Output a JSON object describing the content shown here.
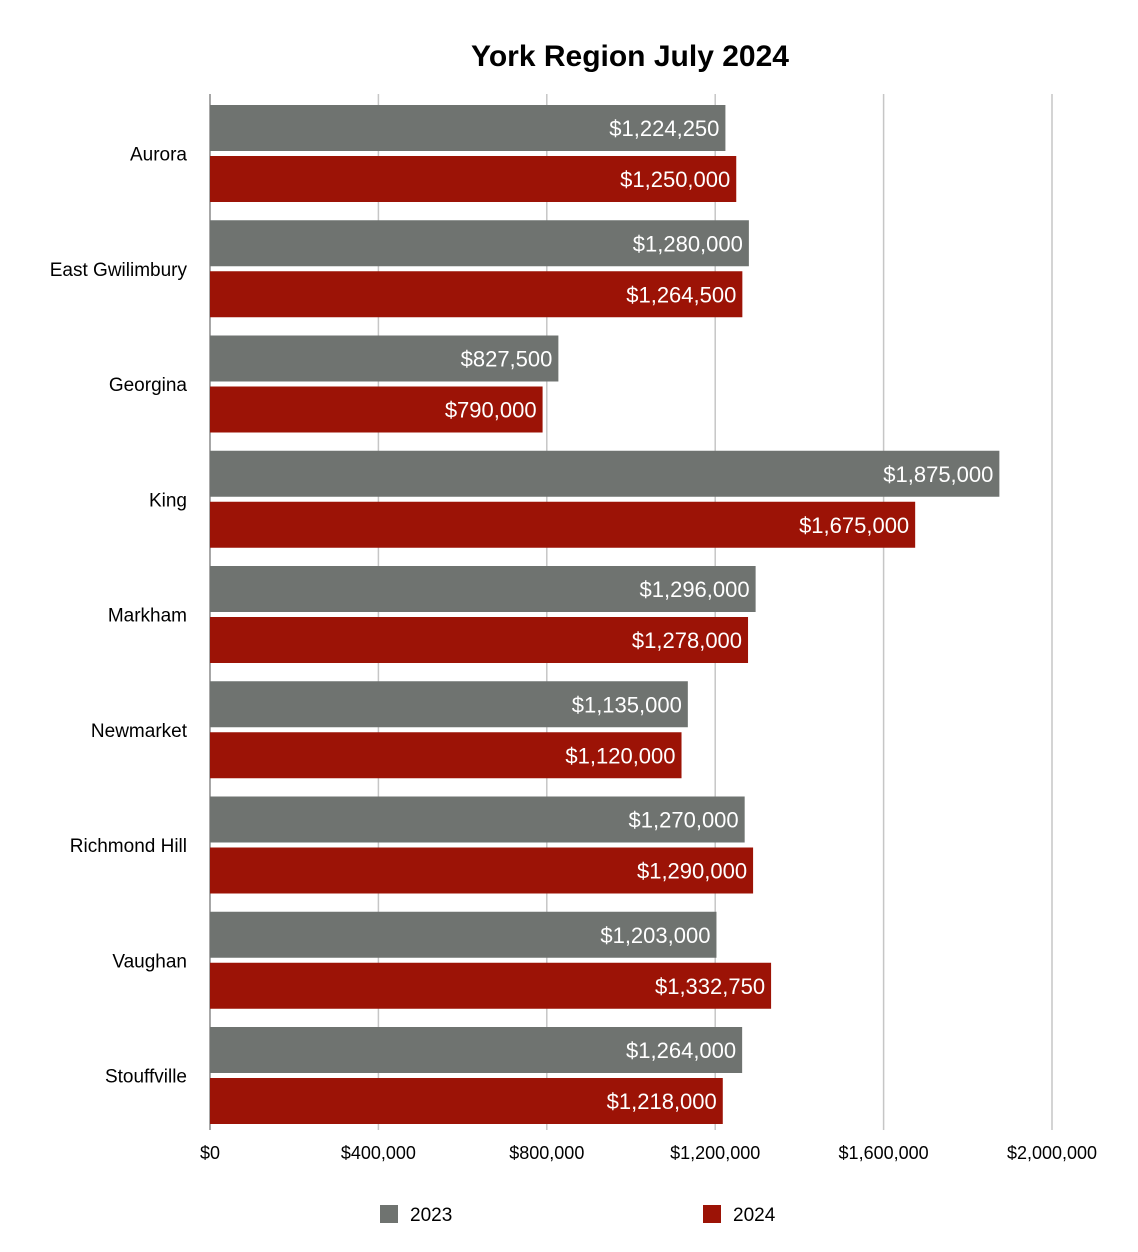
{
  "chart_data": {
    "type": "bar",
    "orientation": "horizontal",
    "title": "York Region July 2024",
    "xlabel": "",
    "ylabel": "",
    "categories": [
      "Aurora",
      "East Gwilimbury",
      "Georgina",
      "King",
      "Markham",
      "Newmarket",
      "Richmond Hill",
      "Vaughan",
      "Stouffville"
    ],
    "series": [
      {
        "name": "2023",
        "color": "#6f7370",
        "values": [
          1224250,
          1280000,
          827500,
          1875000,
          1296000,
          1135000,
          1270000,
          1203000,
          1264000
        ],
        "labels": [
          "$1,224,250",
          "$1,280,000",
          "$827,500",
          "$1,875,000",
          "$1,296,000",
          "$1,135,000",
          "$1,270,000",
          "$1,203,000",
          "$1,264,000"
        ]
      },
      {
        "name": "2024",
        "color": "#9c1306",
        "values": [
          1250000,
          1264500,
          790000,
          1675000,
          1278000,
          1120000,
          1290000,
          1332750,
          1218000
        ],
        "labels": [
          "$1,250,000",
          "$1,264,500",
          "$790,000",
          "$1,675,000",
          "$1,278,000",
          "$1,120,000",
          "$1,290,000",
          "$1,332,750",
          "$1,218,000"
        ]
      }
    ],
    "xlim": [
      0,
      2000000
    ],
    "ticks": [
      0,
      400000,
      800000,
      1200000,
      1600000,
      2000000
    ],
    "tick_labels": [
      "$0",
      "$400,000",
      "$800,000",
      "$1,200,000",
      "$1,600,000",
      "$2,000,000"
    ],
    "grid": true,
    "legend": "bottom"
  }
}
